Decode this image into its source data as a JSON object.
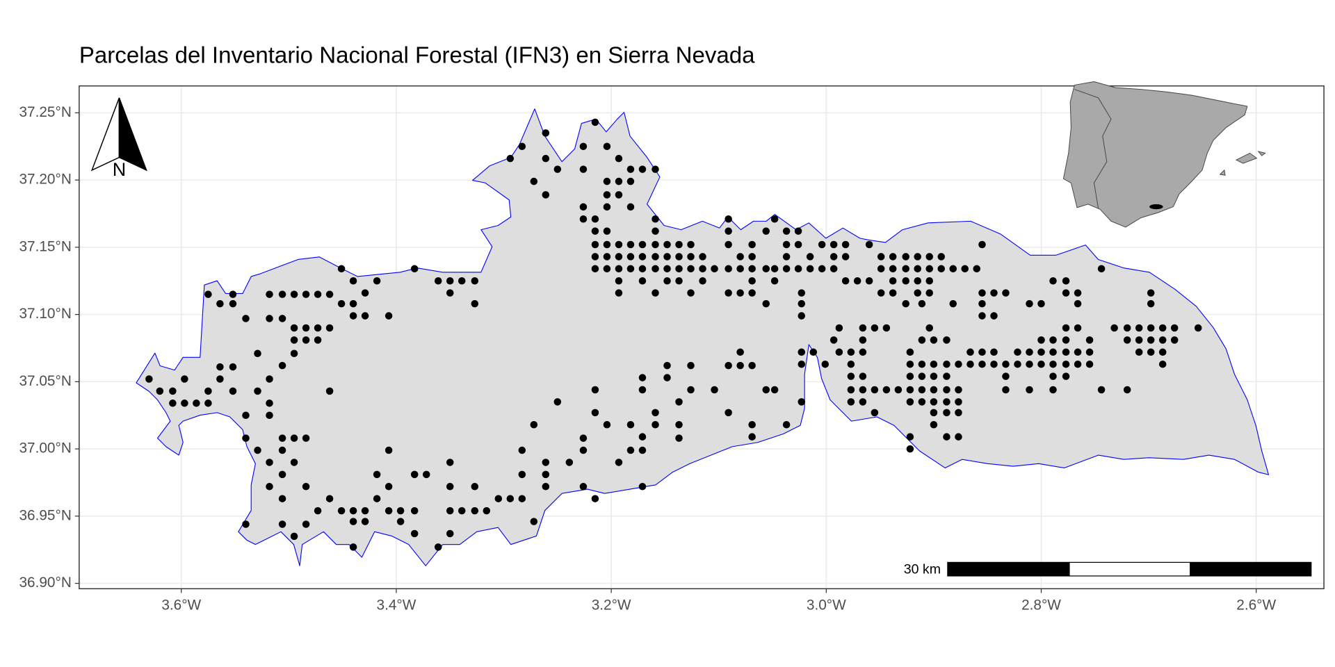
{
  "chart_data": {
    "type": "scatter",
    "title": "Parcelas del Inventario Nacional Forestal (IFN3) en Sierra Nevada",
    "color": "#000000",
    "grid": true,
    "north_label": "N",
    "scale_bar_label": "30 km",
    "xlim": [
      -3.695,
      -2.537
    ],
    "ylim": [
      36.896,
      37.27
    ],
    "xticks": [
      {
        "value": -3.6,
        "label": "3.6°W"
      },
      {
        "value": -3.4,
        "label": "3.4°W"
      },
      {
        "value": -3.2,
        "label": "3.2°W"
      },
      {
        "value": -3.0,
        "label": "3.0°W"
      },
      {
        "value": -2.8,
        "label": "2.8°W"
      },
      {
        "value": -2.6,
        "label": "2.6°W"
      }
    ],
    "yticks": [
      {
        "value": 36.9,
        "label": "36.90°N"
      },
      {
        "value": 36.95,
        "label": "36.95°N"
      },
      {
        "value": 37.0,
        "label": "37.00°N"
      },
      {
        "value": 37.05,
        "label": "37.05°N"
      },
      {
        "value": 37.1,
        "label": "37.10°N"
      },
      {
        "value": 37.15,
        "label": "37.15°N"
      },
      {
        "value": 37.2,
        "label": "37.20°N"
      },
      {
        "value": 37.25,
        "label": "37.25°N"
      }
    ],
    "x": [
      -3.63,
      -3.62,
      -3.608,
      -3.608,
      -3.597,
      -3.586,
      -3.575,
      -3.597,
      -3.575,
      -3.564,
      -3.552,
      -3.552,
      -3.54,
      -3.575,
      -3.564,
      -3.564,
      -3.552,
      -3.552,
      -3.54,
      -3.529,
      -3.529,
      -3.518,
      -3.518,
      -3.518,
      -3.506,
      -3.495,
      -3.54,
      -3.529,
      -3.518,
      -3.506,
      -3.495,
      -3.518,
      -3.506,
      -3.54,
      -3.506,
      -3.506,
      -3.495,
      -3.484,
      -3.484,
      -3.473,
      -3.462,
      -3.484,
      -3.495,
      -3.506,
      -3.518,
      -3.506,
      -3.495,
      -3.484,
      -3.473,
      -3.462,
      -3.518,
      -3.506,
      -3.495,
      -3.484,
      -3.473,
      -3.495,
      -3.484,
      -3.473,
      -3.462,
      -3.451,
      -3.44,
      -3.451,
      -3.44,
      -3.429,
      -3.418,
      -3.429,
      -3.44,
      -3.407,
      -3.462,
      -3.451,
      -3.44,
      -3.429,
      -3.44,
      -3.429,
      -3.418,
      -3.407,
      -3.418,
      -3.407,
      -3.396,
      -3.383,
      -3.407,
      -3.396,
      -3.383,
      -3.44,
      -3.383,
      -3.372,
      -3.361,
      -3.35,
      -3.35,
      -3.339,
      -3.327,
      -3.316,
      -3.305,
      -3.294,
      -3.283,
      -3.327,
      -3.35,
      -3.35,
      -3.383,
      -3.361,
      -3.35,
      -3.339,
      -3.327,
      -3.327,
      -3.35,
      -3.294,
      -3.283,
      -3.272,
      -3.261,
      -3.261,
      -3.261,
      -3.25,
      -3.226,
      -3.215,
      -3.226,
      -3.204,
      -3.193,
      -3.182,
      -3.204,
      -3.193,
      -3.182,
      -3.171,
      -3.159,
      -3.226,
      -3.215,
      -3.226,
      -3.215,
      -3.204,
      -3.204,
      -3.204,
      -3.193,
      -3.182,
      -3.215,
      -3.204,
      -3.193,
      -3.182,
      -3.171,
      -3.159,
      -3.148,
      -3.137,
      -3.126,
      -3.091,
      -3.069,
      -3.037,
      -3.026,
      -3.004,
      -2.993,
      -2.982,
      -2.96,
      -2.855,
      -3.215,
      -3.204,
      -3.193,
      -3.182,
      -3.171,
      -3.159,
      -3.148,
      -3.137,
      -3.126,
      -3.115,
      -3.08,
      -3.069,
      -3.037,
      -3.015,
      -2.993,
      -2.982,
      -2.949,
      -2.938,
      -2.926,
      -2.915,
      -2.904,
      -2.893,
      -3.215,
      -3.204,
      -3.193,
      -3.182,
      -3.171,
      -3.159,
      -3.148,
      -3.137,
      -3.126,
      -3.115,
      -3.104,
      -3.091,
      -3.08,
      -3.069,
      -3.056,
      -3.048,
      -3.037,
      -3.026,
      -3.015,
      -3.004,
      -2.993,
      -2.949,
      -2.938,
      -2.926,
      -2.915,
      -2.904,
      -2.893,
      -2.882,
      -2.871,
      -2.86,
      -2.744,
      -3.193,
      -3.171,
      -3.148,
      -3.137,
      -3.115,
      -3.069,
      -3.048,
      -2.982,
      -2.971,
      -2.96,
      -2.938,
      -2.926,
      -2.915,
      -2.904,
      -2.789,
      -2.777,
      -3.193,
      -3.159,
      -3.126,
      -3.091,
      -3.08,
      -3.069,
      -3.023,
      -2.949,
      -2.938,
      -2.915,
      -2.904,
      -2.855,
      -2.844,
      -2.833,
      -2.777,
      -2.766,
      -2.698,
      -3.056,
      -3.023,
      -2.926,
      -2.911,
      -2.882,
      -2.855,
      -2.811,
      -2.8,
      -2.766,
      -2.698,
      -3.023,
      -2.855,
      -2.844,
      -2.988,
      -2.966,
      -2.955,
      -2.944,
      -2.904,
      -2.766,
      -2.777,
      -2.732,
      -2.72,
      -2.709,
      -2.698,
      -2.687,
      -2.676,
      -2.654,
      -2.993,
      -2.966,
      -2.911,
      -2.9,
      -2.888,
      -2.8,
      -2.789,
      -2.777,
      -2.755,
      -2.72,
      -2.709,
      -2.698,
      -2.687,
      -2.676,
      -3.023,
      -3.012,
      -2.988,
      -2.977,
      -2.966,
      -2.922,
      -2.866,
      -2.855,
      -2.844,
      -2.822,
      -2.811,
      -2.8,
      -2.789,
      -2.777,
      -2.766,
      -2.755,
      -2.709,
      -2.698,
      -2.687,
      -3.023,
      -3.001,
      -2.977,
      -2.922,
      -2.911,
      -2.9,
      -2.888,
      -2.877,
      -2.866,
      -2.855,
      -2.844,
      -2.833,
      -2.822,
      -2.811,
      -2.8,
      -2.789,
      -2.777,
      -2.766,
      -2.755,
      -2.687,
      -2.977,
      -2.966,
      -2.922,
      -2.911,
      -2.9,
      -2.888,
      -2.833,
      -2.789,
      -2.777,
      -2.977,
      -2.966,
      -2.955,
      -2.944,
      -2.933,
      -2.922,
      -2.911,
      -2.9,
      -2.888,
      -2.877,
      -2.833,
      -2.811,
      -2.789,
      -2.744,
      -2.72,
      -3.023,
      -2.977,
      -2.966,
      -2.922,
      -2.911,
      -2.9,
      -2.888,
      -2.877,
      -2.955,
      -2.9,
      -2.888,
      -2.877,
      -2.9,
      -2.922,
      -2.888,
      -2.877,
      -2.922,
      -3.037,
      -3.056,
      -3.048,
      -3.069,
      -3.069,
      -3.091,
      -3.08,
      -3.08,
      -3.069,
      -3.091,
      -3.104,
      -3.126,
      -3.126,
      -3.137,
      -3.137,
      -3.137,
      -3.148,
      -3.148,
      -3.171,
      -3.171,
      -3.159,
      -3.159,
      -3.182,
      -3.171,
      -3.182,
      -3.193,
      -3.204,
      -3.215,
      -3.226,
      -3.226,
      -3.239,
      -3.215,
      -3.25,
      -3.261,
      -3.261,
      -3.261,
      -3.283,
      -3.283,
      -3.272,
      -3.226,
      -3.215,
      -3.171,
      -3.171,
      -3.272,
      -3.091,
      -3.091,
      -3.048,
      -3.056,
      -3.037,
      -3.026,
      -3.159,
      -3.159
    ],
    "values": [
      37.052,
      37.043,
      37.043,
      37.034,
      37.034,
      37.034,
      37.034,
      37.052,
      37.115,
      37.108,
      37.115,
      37.108,
      37.097,
      37.043,
      37.052,
      37.061,
      37.061,
      37.043,
      37.025,
      37.071,
      37.043,
      37.052,
      37.034,
      37.025,
      37.062,
      37.071,
      37.008,
      36.999,
      36.99,
      36.999,
      36.99,
      36.972,
      36.981,
      36.944,
      36.963,
      36.944,
      36.935,
      36.944,
      36.972,
      36.954,
      36.963,
      37.008,
      37.008,
      37.008,
      37.115,
      37.115,
      37.115,
      37.115,
      37.115,
      37.115,
      37.097,
      37.097,
      37.09,
      37.09,
      37.09,
      37.081,
      37.081,
      37.081,
      37.09,
      37.108,
      37.108,
      37.134,
      37.125,
      37.116,
      37.125,
      37.099,
      37.099,
      37.099,
      37.043,
      36.954,
      36.954,
      36.954,
      36.946,
      36.946,
      36.981,
      36.972,
      36.963,
      36.999,
      36.954,
      36.954,
      36.954,
      36.946,
      36.937,
      36.927,
      36.981,
      36.981,
      36.927,
      36.937,
      36.954,
      36.954,
      36.954,
      36.954,
      36.963,
      36.963,
      36.963,
      36.972,
      36.972,
      36.99,
      37.134,
      37.125,
      37.116,
      37.125,
      37.108,
      37.125,
      37.125,
      37.216,
      37.225,
      37.199,
      37.189,
      37.235,
      37.216,
      37.208,
      37.208,
      37.243,
      37.225,
      37.225,
      37.216,
      37.208,
      37.199,
      37.199,
      37.199,
      37.208,
      37.208,
      37.18,
      37.171,
      37.171,
      37.162,
      37.162,
      37.18,
      37.189,
      37.189,
      37.18,
      37.152,
      37.152,
      37.152,
      37.152,
      37.152,
      37.152,
      37.152,
      37.152,
      37.152,
      37.152,
      37.152,
      37.152,
      37.152,
      37.152,
      37.152,
      37.152,
      37.152,
      37.152,
      37.143,
      37.143,
      37.143,
      37.143,
      37.143,
      37.143,
      37.143,
      37.143,
      37.143,
      37.143,
      37.143,
      37.143,
      37.143,
      37.143,
      37.143,
      37.143,
      37.143,
      37.143,
      37.143,
      37.143,
      37.143,
      37.143,
      37.134,
      37.134,
      37.134,
      37.134,
      37.134,
      37.134,
      37.134,
      37.134,
      37.134,
      37.134,
      37.134,
      37.134,
      37.134,
      37.134,
      37.134,
      37.134,
      37.134,
      37.134,
      37.134,
      37.134,
      37.134,
      37.134,
      37.134,
      37.134,
      37.134,
      37.134,
      37.134,
      37.134,
      37.134,
      37.134,
      37.134,
      37.125,
      37.125,
      37.125,
      37.125,
      37.125,
      37.125,
      37.125,
      37.125,
      37.125,
      37.125,
      37.125,
      37.125,
      37.125,
      37.125,
      37.125,
      37.125,
      37.116,
      37.116,
      37.116,
      37.116,
      37.116,
      37.116,
      37.116,
      37.116,
      37.116,
      37.116,
      37.116,
      37.116,
      37.116,
      37.116,
      37.116,
      37.116,
      37.116,
      37.108,
      37.108,
      37.108,
      37.108,
      37.108,
      37.108,
      37.108,
      37.108,
      37.108,
      37.108,
      37.099,
      37.099,
      37.099,
      37.09,
      37.09,
      37.09,
      37.09,
      37.09,
      37.09,
      37.09,
      37.09,
      37.09,
      37.09,
      37.09,
      37.09,
      37.09,
      37.09,
      37.081,
      37.081,
      37.081,
      37.081,
      37.081,
      37.081,
      37.081,
      37.081,
      37.081,
      37.081,
      37.081,
      37.081,
      37.081,
      37.081,
      37.072,
      37.072,
      37.072,
      37.072,
      37.072,
      37.072,
      37.072,
      37.072,
      37.072,
      37.072,
      37.072,
      37.072,
      37.072,
      37.072,
      37.072,
      37.072,
      37.072,
      37.072,
      37.072,
      37.063,
      37.063,
      37.063,
      37.063,
      37.063,
      37.063,
      37.063,
      37.063,
      37.063,
      37.063,
      37.063,
      37.063,
      37.063,
      37.063,
      37.063,
      37.063,
      37.063,
      37.063,
      37.063,
      37.063,
      37.054,
      37.054,
      37.054,
      37.054,
      37.054,
      37.054,
      37.054,
      37.054,
      37.054,
      37.044,
      37.044,
      37.044,
      37.044,
      37.044,
      37.044,
      37.044,
      37.044,
      37.044,
      37.044,
      37.044,
      37.044,
      37.044,
      37.044,
      37.044,
      37.035,
      37.035,
      37.035,
      37.035,
      37.035,
      37.035,
      37.035,
      37.035,
      37.027,
      37.027,
      37.027,
      37.027,
      37.018,
      37.009,
      37.009,
      37.009,
      37.0,
      37.018,
      37.044,
      37.044,
      37.018,
      37.009,
      37.027,
      37.072,
      37.062,
      37.062,
      37.062,
      37.044,
      37.062,
      37.044,
      37.035,
      37.018,
      37.008,
      37.062,
      37.053,
      37.053,
      37.044,
      37.027,
      37.018,
      37.018,
      37.009,
      36.999,
      36.99,
      37.018,
      37.027,
      37.008,
      36.999,
      36.99,
      37.044,
      37.035,
      36.99,
      36.981,
      36.972,
      36.999,
      36.981,
      37.018,
      36.972,
      36.963,
      36.972,
      36.999,
      36.946,
      37.171,
      37.162,
      37.171,
      37.162,
      37.162,
      37.162,
      37.171,
      37.162
    ]
  }
}
